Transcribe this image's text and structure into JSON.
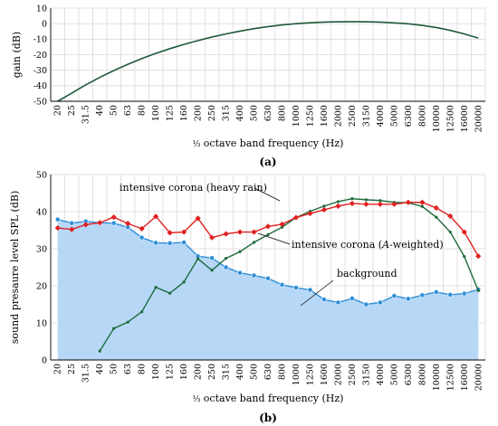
{
  "colors": {
    "gain": "#1e5a3a",
    "heavy_rain": "#e02020",
    "a_weighted": "#1e6b3a",
    "background_line": "#2f8fd8",
    "background_fill": "#b7d7f7"
  },
  "chart_data": [
    {
      "type": "line",
      "panel_label": "(a)",
      "xlabel_prefix": "⅓",
      "xlabel": " octave band frequency (Hz)",
      "ylabel": "gain (dB)",
      "ylim": [
        -50,
        10
      ],
      "yticks": [
        "-50",
        "-40",
        "-30",
        "-20",
        "-10",
        "0",
        "10"
      ],
      "grid": true,
      "categories": [
        "20",
        "25",
        "31.5",
        "40",
        "50",
        "63",
        "80",
        "100",
        "125",
        "160",
        "200",
        "250",
        "315",
        "400",
        "500",
        "630",
        "800",
        "1000",
        "1250",
        "1600",
        "2000",
        "2500",
        "3150",
        "4000",
        "5000",
        "6300",
        "8000",
        "10000",
        "12500",
        "16000",
        "20000"
      ],
      "series": [
        {
          "name": "",
          "values": [
            -50.5,
            -44.7,
            -39.4,
            -34.6,
            -30.2,
            -26.2,
            -22.5,
            -19.1,
            -16.1,
            -13.4,
            -10.9,
            -8.6,
            -6.6,
            -4.8,
            -3.2,
            -1.9,
            -0.8,
            0.0,
            0.6,
            1.0,
            1.2,
            1.3,
            1.2,
            1.0,
            0.5,
            -0.1,
            -1.1,
            -2.5,
            -4.3,
            -6.6,
            -9.3
          ]
        }
      ]
    },
    {
      "type": "line",
      "panel_label": "(b)",
      "xlabel_prefix": "⅓",
      "xlabel": " octave band frequency (Hz)",
      "ylabel": "sound presaure level SPL (dB)",
      "ylim": [
        0,
        50
      ],
      "yticks": [
        "0",
        "10",
        "20",
        "30",
        "40",
        "50"
      ],
      "grid": true,
      "categories": [
        "20",
        "25",
        "31.5",
        "40",
        "50",
        "63",
        "80",
        "100",
        "125",
        "160",
        "200",
        "250",
        "315",
        "400",
        "500",
        "630",
        "800",
        "1000",
        "1250",
        "1600",
        "2000",
        "2500",
        "3150",
        "4000",
        "5000",
        "6300",
        "8000",
        "10000",
        "12500",
        "16000",
        "20000"
      ],
      "series": [
        {
          "name": "intensive corona (heavy rain)",
          "values": [
            35.6,
            35.2,
            36.5,
            37.0,
            38.5,
            36.8,
            35.4,
            38.7,
            34.3,
            34.5,
            38.2,
            33.0,
            34.0,
            34.5,
            34.5,
            36.0,
            36.6,
            38.4,
            39.5,
            40.5,
            41.5,
            42.2,
            42.0,
            42.0,
            42.0,
            42.5,
            42.5,
            41.0,
            38.8,
            34.5,
            28.0
          ]
        },
        {
          "name": "intensive corona (A-weighted)",
          "values": [
            null,
            null,
            null,
            2.4,
            8.5,
            10.2,
            13.0,
            19.6,
            18.0,
            21.0,
            27.3,
            24.2,
            27.4,
            29.2,
            31.7,
            33.8,
            35.8,
            38.4,
            40.1,
            41.5,
            42.7,
            43.5,
            43.2,
            43.0,
            42.5,
            42.4,
            41.4,
            38.5,
            34.5,
            27.9,
            18.7
          ]
        },
        {
          "name": "background",
          "values": [
            37.9,
            36.9,
            37.4,
            37.0,
            36.9,
            35.8,
            33.0,
            31.6,
            31.5,
            31.7,
            28.0,
            27.5,
            25.0,
            23.5,
            22.8,
            22.0,
            20.3,
            19.5,
            18.9,
            16.3,
            15.5,
            16.6,
            15.0,
            15.5,
            17.3,
            16.5,
            17.5,
            18.3,
            17.6,
            17.9,
            19.0
          ]
        }
      ],
      "annotations": [
        {
          "text_pre": "intensive corona (heavy rain)",
          "text_italic": "",
          "text_post": ""
        },
        {
          "text_pre": "intensive corona (",
          "text_italic": "A",
          "text_post": "-weighted)"
        },
        {
          "text_pre": "background",
          "text_italic": "",
          "text_post": ""
        }
      ]
    }
  ]
}
